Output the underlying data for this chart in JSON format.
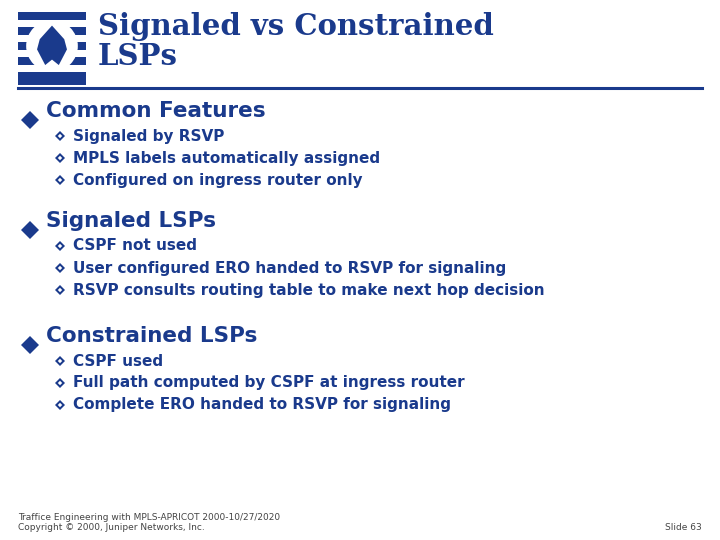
{
  "title_line1": "Signaled vs Constrained",
  "title_line2": "LSPs",
  "title_color": "#1a3a8c",
  "bg_color": "#ffffff",
  "line_color": "#1a3a8c",
  "bullet_color": "#1a3a8c",
  "text_color": "#1a3a8c",
  "footer_left": "Traffice Engineering with MPLS-APRICOT 2000-10/27/2020\nCopyright © 2000, Juniper Networks, Inc.",
  "footer_right": "Slide 63",
  "sections": [
    {
      "header": "Common Features",
      "items": [
        "Signaled by RSVP",
        "MPLS labels automatically assigned",
        "Configured on ingress router only"
      ]
    },
    {
      "header": "Signaled LSPs",
      "items": [
        "CSPF not used",
        "User configured ERO handed to RSVP for signaling",
        "RSVP consults routing table to make next hop decision"
      ]
    },
    {
      "header": "Constrained LSPs",
      "items": [
        "CSPF used",
        "Full path computed by CSPF at ingress router",
        "Complete ERO handed to RSVP for signaling"
      ]
    }
  ]
}
